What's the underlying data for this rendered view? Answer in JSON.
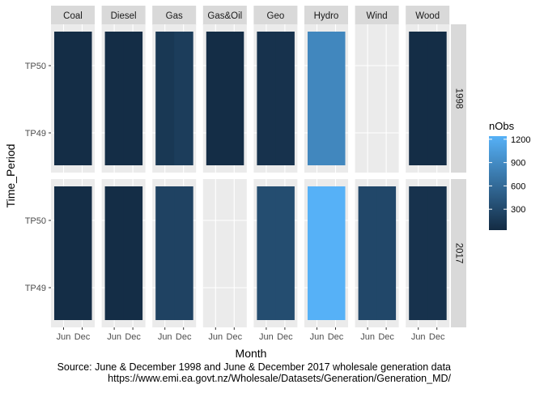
{
  "chart_data": {
    "type": "heatmap",
    "xlabel": "Month",
    "ylabel": "Time_Period",
    "x_ticks": [
      "Jun",
      "Dec"
    ],
    "y_ticks": [
      "TP49",
      "TP50"
    ],
    "facet_columns": [
      "Coal",
      "Diesel",
      "Gas",
      "Gas&Oil",
      "Geo",
      "Hydro",
      "Wind",
      "Wood"
    ],
    "facet_rows": [
      "1998",
      "2017"
    ],
    "legend": {
      "title": "nObs",
      "position": "right",
      "breaks": [
        300,
        600,
        900,
        1200
      ],
      "range": [
        31,
        1240
      ],
      "low_color": "#132B43",
      "high_color": "#56B1F7"
    },
    "cells": [
      {
        "year": "1998",
        "fuel": "Coal",
        "tiles": [
          {
            "month": "Jun",
            "value": 48
          },
          {
            "month": "Dec",
            "value": 48
          }
        ]
      },
      {
        "year": "1998",
        "fuel": "Diesel",
        "tiles": [
          {
            "month": "Jun",
            "value": 48
          },
          {
            "month": "Dec",
            "value": 48
          }
        ]
      },
      {
        "year": "1998",
        "fuel": "Gas",
        "tiles": [
          {
            "month": "Jun",
            "value": 144
          },
          {
            "month": "Dec",
            "value": 192
          }
        ]
      },
      {
        "year": "1998",
        "fuel": "Gas&Oil",
        "tiles": [
          {
            "month": "Jun",
            "value": 48
          },
          {
            "month": "Dec",
            "value": 48
          }
        ]
      },
      {
        "year": "1998",
        "fuel": "Geo",
        "tiles": [
          {
            "month": "Jun",
            "value": 96
          },
          {
            "month": "Dec",
            "value": 96
          }
        ]
      },
      {
        "year": "1998",
        "fuel": "Hydro",
        "tiles": [
          {
            "month": "Jun",
            "value": 860
          },
          {
            "month": "Dec",
            "value": 860
          }
        ]
      },
      {
        "year": "1998",
        "fuel": "Wood",
        "tiles": [
          {
            "month": "Jun",
            "value": 48
          },
          {
            "month": "Dec",
            "value": 48
          }
        ]
      },
      {
        "year": "2017",
        "fuel": "Coal",
        "tiles": [
          {
            "month": "Jun",
            "value": 48
          },
          {
            "month": "Dec",
            "value": 48
          }
        ]
      },
      {
        "year": "2017",
        "fuel": "Diesel",
        "tiles": [
          {
            "month": "Jun",
            "value": 48
          },
          {
            "month": "Dec",
            "value": 48
          }
        ]
      },
      {
        "year": "2017",
        "fuel": "Gas",
        "tiles": [
          {
            "month": "Jun",
            "value": 240
          },
          {
            "month": "Dec",
            "value": 240
          }
        ]
      },
      {
        "year": "2017",
        "fuel": "Geo",
        "tiles": [
          {
            "month": "Jun",
            "value": 336
          },
          {
            "month": "Dec",
            "value": 336
          }
        ]
      },
      {
        "year": "2017",
        "fuel": "Hydro",
        "tiles": [
          {
            "month": "Jun",
            "value": 1240
          },
          {
            "month": "Dec",
            "value": 1240
          }
        ]
      },
      {
        "year": "2017",
        "fuel": "Wind",
        "tiles": [
          {
            "month": "Jun",
            "value": 288
          },
          {
            "month": "Dec",
            "value": 288
          }
        ]
      },
      {
        "year": "2017",
        "fuel": "Wood",
        "tiles": [
          {
            "month": "Jun",
            "value": 96
          },
          {
            "month": "Dec",
            "value": 96
          }
        ]
      }
    ],
    "caption_lines": [
      "Source: June & December 1998 and June & December 2017 wholesale generation data",
      "https://www.emi.ea.govt.nz/Wholesale/Datasets/Generation/Generation_MD/"
    ]
  }
}
